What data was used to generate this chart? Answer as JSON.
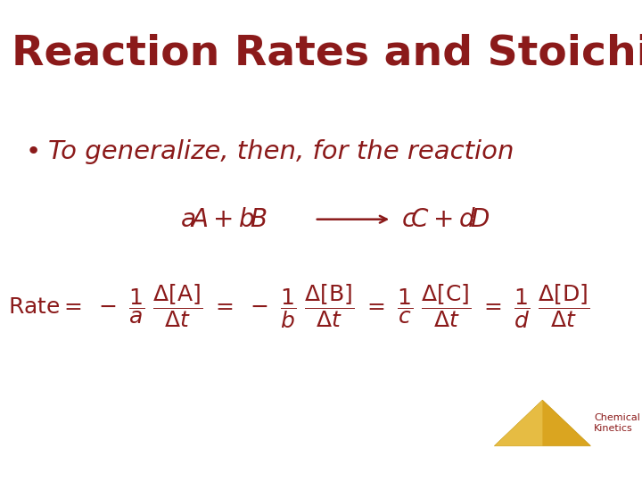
{
  "title": "Reaction Rates and Stoichiometry",
  "title_color": "#8B1A1A",
  "title_fontsize": 34,
  "bg_color": "#FFFFFF",
  "text_color": "#8B1A1A",
  "bullet_text": "To generalize, then, for the reaction",
  "bullet_fontsize": 21,
  "reaction_fontsize": 20,
  "rate_fontsize": 18,
  "logo_text1": "Chemical",
  "logo_text2": "Kinetics",
  "logo_text_color": "#8B1A1A",
  "logo_text_fontsize": 8,
  "triangle_color_face": "#DAA520",
  "triangle_color_edge": "#C8960A",
  "triangle_highlight": "#F0D060"
}
